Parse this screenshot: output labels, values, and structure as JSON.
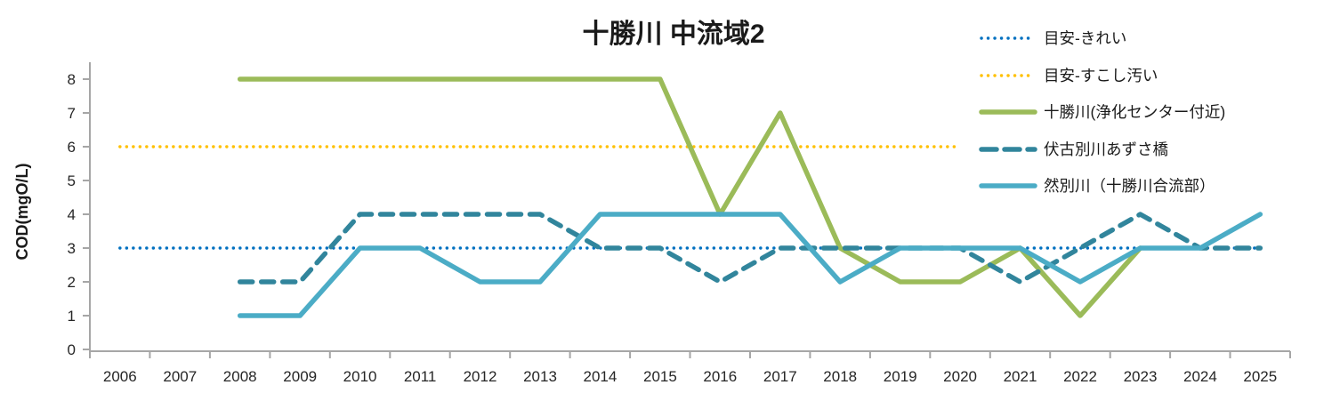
{
  "title": "十勝川 中流域2",
  "colors": {
    "background": "#FFFFFF",
    "axis": "#A6A6A6",
    "text": "#262626",
    "guideline_clean": "#0070C0",
    "guideline_slightly_dirty": "#FFC000",
    "tokachi_green": "#9BBB59",
    "fushikobetsu_teal": "#31859C",
    "shikaribetsu_blue": "#4BACC6"
  },
  "chart_data": {
    "type": "line",
    "title": "十勝川 中流域2",
    "xlabel": "",
    "ylabel": "COD(mgO/L)",
    "ylim": [
      0,
      8
    ],
    "yticks": [
      0,
      1,
      2,
      3,
      4,
      5,
      6,
      7,
      8
    ],
    "x_categories": [
      2006,
      2007,
      2008,
      2009,
      2010,
      2011,
      2012,
      2013,
      2014,
      2015,
      2016,
      2017,
      2018,
      2019,
      2020,
      2021,
      2022,
      2023,
      2024,
      2025
    ],
    "grid": false,
    "legend_position": "top-right",
    "series": [
      {
        "key": "guideline-clean",
        "name": "目安-きれい",
        "color": "#0070C0",
        "line_style": "dotted",
        "start_year": 2006,
        "values": [
          3,
          3,
          3,
          3,
          3,
          3,
          3,
          3,
          3,
          3,
          3,
          3,
          3,
          3,
          3,
          3,
          3,
          3,
          3,
          3
        ]
      },
      {
        "key": "guideline-slightly-dirty",
        "name": "目安-すこし汚い",
        "color": "#FFC000",
        "line_style": "dotted",
        "start_year": 2006,
        "values": [
          6,
          6,
          6,
          6,
          6,
          6,
          6,
          6,
          6,
          6,
          6,
          6,
          6,
          6,
          6
        ]
      },
      {
        "key": "tokachi-river",
        "name": "十勝川(浄化センター付近)",
        "color": "#9BBB59",
        "line_style": "solid",
        "start_year": 2008,
        "values": [
          8,
          8,
          8,
          8,
          8,
          8,
          8,
          8,
          4,
          7,
          3,
          2,
          2,
          3,
          1,
          3
        ]
      },
      {
        "key": "fushikobetsu-river",
        "name": "伏古別川あずさ橋",
        "color": "#31859C",
        "line_style": "dashed",
        "start_year": 2008,
        "values": [
          2,
          2,
          4,
          4,
          4,
          4,
          3,
          3,
          2,
          3,
          3,
          3,
          3,
          2,
          3,
          4,
          3,
          3
        ]
      },
      {
        "key": "shikaribetsu-river",
        "name": "然別川（十勝川合流部）",
        "color": "#4BACC6",
        "line_style": "solid",
        "start_year": 2008,
        "values": [
          1,
          1,
          3,
          3,
          2,
          2,
          4,
          4,
          4,
          4,
          2,
          3,
          3,
          3,
          2,
          3,
          3,
          4
        ]
      }
    ]
  }
}
